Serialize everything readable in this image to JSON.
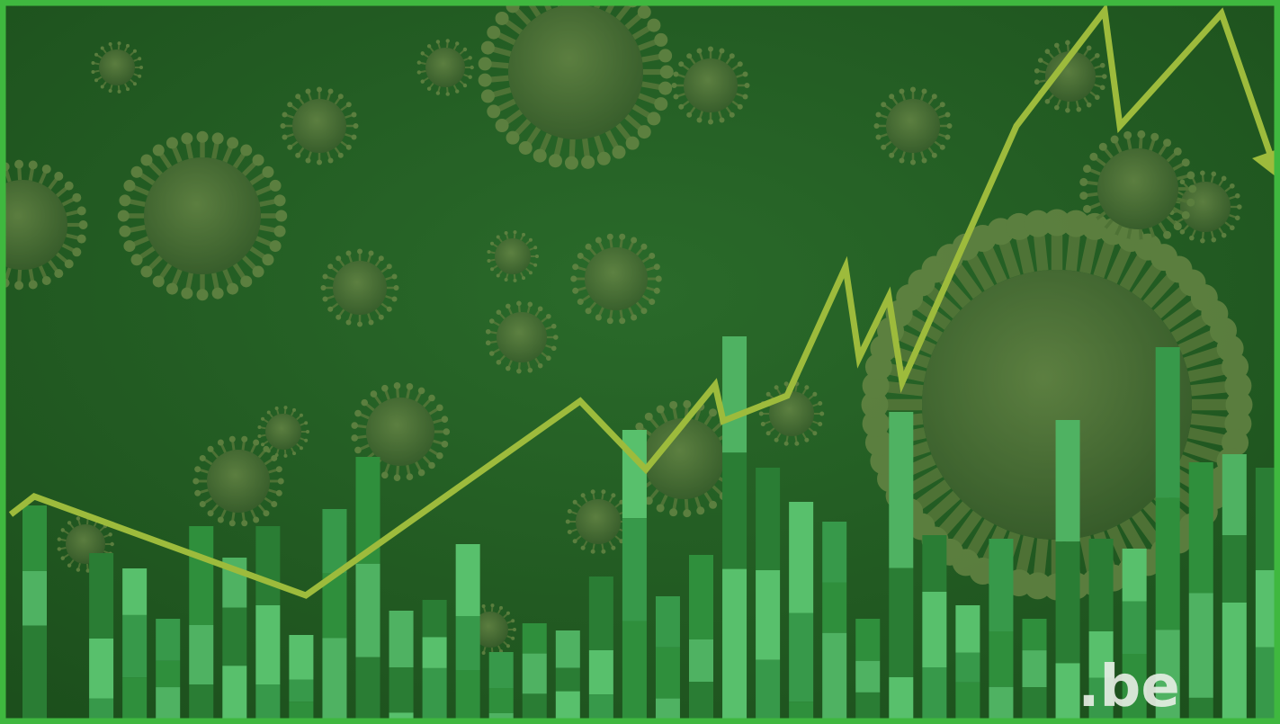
{
  "logo": {
    "text": ".be"
  }
}
